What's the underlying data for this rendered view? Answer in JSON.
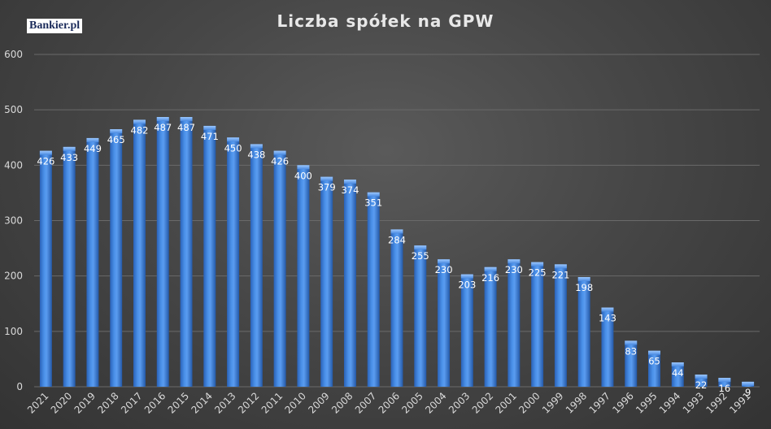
{
  "brand": {
    "logo_text": "Bankier.pl"
  },
  "chart_data": {
    "type": "bar",
    "title": "Liczba spółek na GPW",
    "xlabel": "",
    "ylabel": "",
    "ylim": [
      0,
      600
    ],
    "yticks": [
      "0",
      "100",
      "200",
      "300",
      "400",
      "500",
      "600"
    ],
    "grid": true,
    "bar_color": "#3d7fd9",
    "categories": [
      "2021",
      "2020",
      "2019",
      "2018",
      "2017",
      "2016",
      "2015",
      "2014",
      "2013",
      "2012",
      "2011",
      "2010",
      "2009",
      "2008",
      "2007",
      "2006",
      "2005",
      "2004",
      "2003",
      "2002",
      "2001",
      "2000",
      "1999",
      "1998",
      "1997",
      "1996",
      "1995",
      "1994",
      "1993",
      "1992",
      "1991"
    ],
    "values": [
      426,
      433,
      449,
      465,
      482,
      487,
      487,
      471,
      450,
      438,
      426,
      400,
      379,
      374,
      351,
      284,
      255,
      230,
      203,
      216,
      230,
      225,
      221,
      198,
      143,
      83,
      65,
      44,
      22,
      16,
      9
    ]
  }
}
